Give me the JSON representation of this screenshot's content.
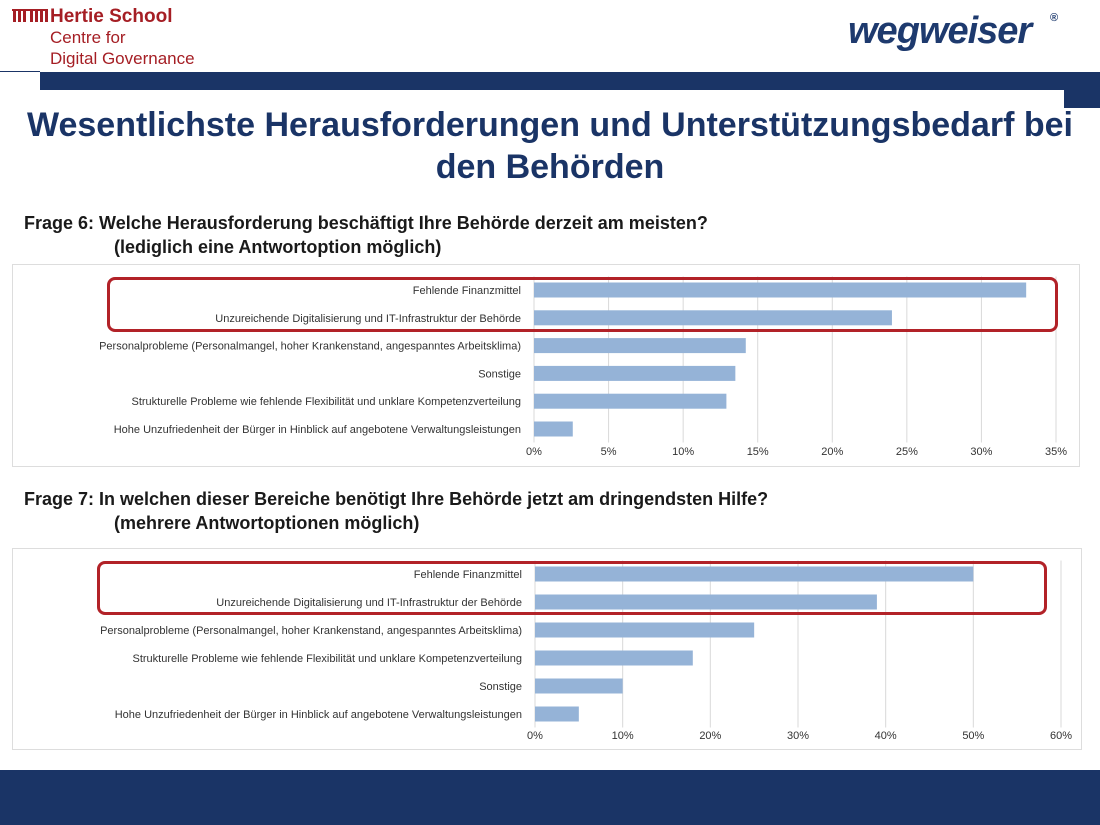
{
  "header": {
    "organization_name": "Hertie School",
    "organization_sub_line1": "Centre for",
    "organization_sub_line2": "Digital Governance",
    "partner_logo_text": "wegweiser",
    "partner_logo_mark": "®"
  },
  "slide": {
    "title": "Wesentlichste Herausforderungen und Unterstützungsbedarf bei den Behörden"
  },
  "questions": [
    {
      "line1": "Frage 6: Welche Herausforderung beschäftigt Ihre Behörde derzeit am meisten?",
      "line2": "(lediglich eine Antwortoption möglich)"
    },
    {
      "line1": "Frage 7: In welchen dieser Bereiche benötigt Ihre Behörde jetzt am dringendsten Hilfe?",
      "line2": "(mehrere Antwortoptionen möglich)"
    }
  ],
  "colors": {
    "bar": "#95b3d7",
    "highlight": "#b22228",
    "navy": "#1a3466",
    "brand_red": "#a51e24"
  },
  "chart_data": [
    {
      "type": "bar",
      "orientation": "horizontal",
      "categories": [
        "Fehlende Finanzmittel",
        "Unzureichende Digitalisierung und IT-Infrastruktur der Behörde",
        "Personalprobleme (Personalmangel, hoher Krankenstand, angespanntes Arbeitsklima)",
        "Sonstige",
        "Strukturelle Probleme wie fehlende Flexibilität und unklare Kompetenzverteilung",
        "Hohe Unzufriedenheit der Bürger in Hinblick auf angebotene Verwaltungsleistungen"
      ],
      "values": [
        33,
        24,
        14.2,
        13.5,
        12.9,
        2.6
      ],
      "xlim": [
        0,
        35
      ],
      "xticks": [
        0,
        5,
        10,
        15,
        20,
        25,
        30,
        35
      ],
      "xtick_labels": [
        "0%",
        "5%",
        "10%",
        "15%",
        "20%",
        "25%",
        "30%",
        "35%"
      ],
      "highlighted_categories": [
        0,
        1
      ],
      "grid": true
    },
    {
      "type": "bar",
      "orientation": "horizontal",
      "categories": [
        "Fehlende Finanzmittel",
        "Unzureichende Digitalisierung und IT-Infrastruktur der Behörde",
        "Personalprobleme (Personalmangel, hoher Krankenstand, angespanntes Arbeitsklima)",
        "Strukturelle Probleme wie fehlende Flexibilität und unklare Kompetenzverteilung",
        "Sonstige",
        "Hohe Unzufriedenheit der Bürger in Hinblick auf angebotene Verwaltungsleistungen"
      ],
      "values": [
        50,
        39,
        25,
        18,
        10,
        5
      ],
      "xlim": [
        0,
        60
      ],
      "xticks": [
        0,
        10,
        20,
        30,
        40,
        50,
        60
      ],
      "xtick_labels": [
        "0%",
        "10%",
        "20%",
        "30%",
        "40%",
        "50%",
        "60%"
      ],
      "highlighted_categories": [
        0,
        1
      ],
      "grid": true
    }
  ]
}
